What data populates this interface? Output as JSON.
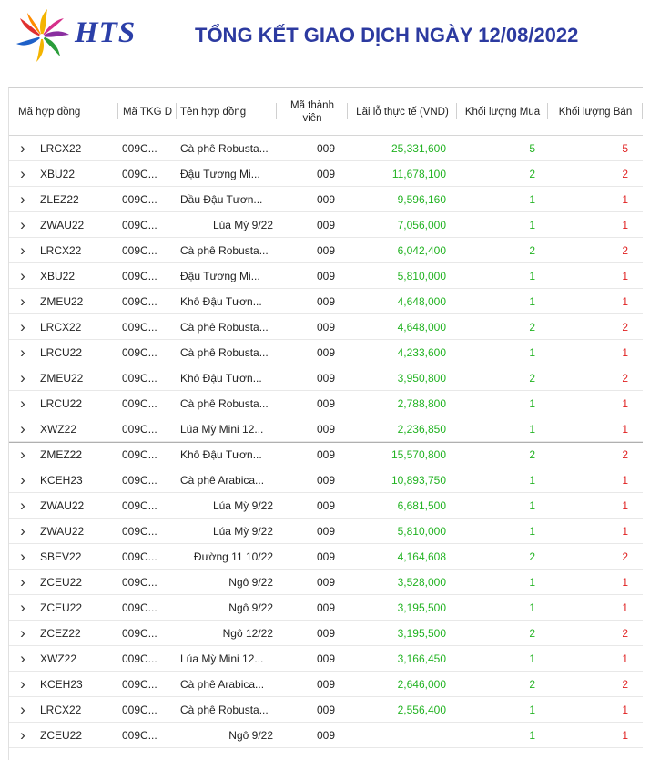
{
  "brand": {
    "logo_text": "HTS"
  },
  "title": "TỔNG KẾT GIAO DỊCH NGÀY 12/08/2022",
  "colors": {
    "title": "#2c3aa0",
    "positive": "#22b322",
    "negative": "#e02020"
  },
  "table": {
    "headers": {
      "code": "Mã hợp đồng",
      "tkgd": "Mã TKG D",
      "name": "Tên hợp đồng",
      "member": "Mã thành viên",
      "pnl": "Lãi lỗ thực tế (VND)",
      "buy": "Khối lượng Mua",
      "sell": "Khối lượng Bán"
    },
    "rows": [
      {
        "code": "LRCX22",
        "tkgd": "009C...",
        "name": "Cà phê Robusta...",
        "member": "009",
        "pnl": "25,331,600",
        "buy": "5",
        "sell": "5",
        "align": "left"
      },
      {
        "code": "XBU22",
        "tkgd": "009C...",
        "name": "Đậu Tương Mi...",
        "member": "009",
        "pnl": "11,678,100",
        "buy": "2",
        "sell": "2",
        "align": "left"
      },
      {
        "code": "ZLEZ22",
        "tkgd": "009C...",
        "name": "Dầu Đậu Tươn...",
        "member": "009",
        "pnl": "9,596,160",
        "buy": "1",
        "sell": "1",
        "align": "left"
      },
      {
        "code": "ZWAU22",
        "tkgd": "009C...",
        "name": "Lúa Mỳ 9/22",
        "member": "009",
        "pnl": "7,056,000",
        "buy": "1",
        "sell": "1",
        "align": "right"
      },
      {
        "code": "LRCX22",
        "tkgd": "009C...",
        "name": "Cà phê Robusta...",
        "member": "009",
        "pnl": "6,042,400",
        "buy": "2",
        "sell": "2",
        "align": "left"
      },
      {
        "code": "XBU22",
        "tkgd": "009C...",
        "name": "Đậu Tương Mi...",
        "member": "009",
        "pnl": "5,810,000",
        "buy": "1",
        "sell": "1",
        "align": "left"
      },
      {
        "code": "ZMEU22",
        "tkgd": "009C...",
        "name": "Khô Đậu Tươn...",
        "member": "009",
        "pnl": "4,648,000",
        "buy": "1",
        "sell": "1",
        "align": "left"
      },
      {
        "code": "LRCX22",
        "tkgd": "009C...",
        "name": "Cà phê Robusta...",
        "member": "009",
        "pnl": "4,648,000",
        "buy": "2",
        "sell": "2",
        "align": "left"
      },
      {
        "code": "LRCU22",
        "tkgd": "009C...",
        "name": "Cà phê Robusta...",
        "member": "009",
        "pnl": "4,233,600",
        "buy": "1",
        "sell": "1",
        "align": "left"
      },
      {
        "code": "ZMEU22",
        "tkgd": "009C...",
        "name": "Khô Đậu Tươn...",
        "member": "009",
        "pnl": "3,950,800",
        "buy": "2",
        "sell": "2",
        "align": "left"
      },
      {
        "code": "LRCU22",
        "tkgd": "009C...",
        "name": "Cà phê Robusta...",
        "member": "009",
        "pnl": "2,788,800",
        "buy": "1",
        "sell": "1",
        "align": "left"
      },
      {
        "code": "XWZ22",
        "tkgd": "009C...",
        "name": "Lúa Mỳ Mini 12...",
        "member": "009",
        "pnl": "2,236,850",
        "buy": "1",
        "sell": "1",
        "align": "left"
      },
      {
        "code": "ZMEZ22",
        "tkgd": "009C...",
        "name": "Khô Đậu Tươn...",
        "member": "009",
        "pnl": "15,570,800",
        "buy": "2",
        "sell": "2",
        "align": "left",
        "section": true
      },
      {
        "code": "KCEH23",
        "tkgd": "009C...",
        "name": "Cà phê Arabica...",
        "member": "009",
        "pnl": "10,893,750",
        "buy": "1",
        "sell": "1",
        "align": "left"
      },
      {
        "code": "ZWAU22",
        "tkgd": "009C...",
        "name": "Lúa Mỳ 9/22",
        "member": "009",
        "pnl": "6,681,500",
        "buy": "1",
        "sell": "1",
        "align": "right"
      },
      {
        "code": "ZWAU22",
        "tkgd": "009C...",
        "name": "Lúa Mỳ 9/22",
        "member": "009",
        "pnl": "5,810,000",
        "buy": "1",
        "sell": "1",
        "align": "right"
      },
      {
        "code": "SBEV22",
        "tkgd": "009C...",
        "name": "Đường 11 10/22",
        "member": "009",
        "pnl": "4,164,608",
        "buy": "2",
        "sell": "2",
        "align": "right"
      },
      {
        "code": "ZCEU22",
        "tkgd": "009C...",
        "name": "Ngô 9/22",
        "member": "009",
        "pnl": "3,528,000",
        "buy": "1",
        "sell": "1",
        "align": "right"
      },
      {
        "code": "ZCEU22",
        "tkgd": "009C...",
        "name": "Ngô 9/22",
        "member": "009",
        "pnl": "3,195,500",
        "buy": "1",
        "sell": "1",
        "align": "right"
      },
      {
        "code": "ZCEZ22",
        "tkgd": "009C...",
        "name": "Ngô 12/22",
        "member": "009",
        "pnl": "3,195,500",
        "buy": "2",
        "sell": "2",
        "align": "right"
      },
      {
        "code": "XWZ22",
        "tkgd": "009C...",
        "name": "Lúa Mỳ Mini 12...",
        "member": "009",
        "pnl": "3,166,450",
        "buy": "1",
        "sell": "1",
        "align": "left"
      },
      {
        "code": "KCEH23",
        "tkgd": "009C...",
        "name": "Cà phê Arabica...",
        "member": "009",
        "pnl": "2,646,000",
        "buy": "2",
        "sell": "2",
        "align": "left"
      },
      {
        "code": "LRCX22",
        "tkgd": "009C...",
        "name": "Cà phê Robusta...",
        "member": "009",
        "pnl": "2,556,400",
        "buy": "1",
        "sell": "1",
        "align": "left"
      },
      {
        "code": "ZCEU22",
        "tkgd": "009C...",
        "name": "Ngô 9/22",
        "member": "009",
        "pnl": "",
        "buy": "1",
        "sell": "1",
        "align": "right"
      }
    ]
  }
}
